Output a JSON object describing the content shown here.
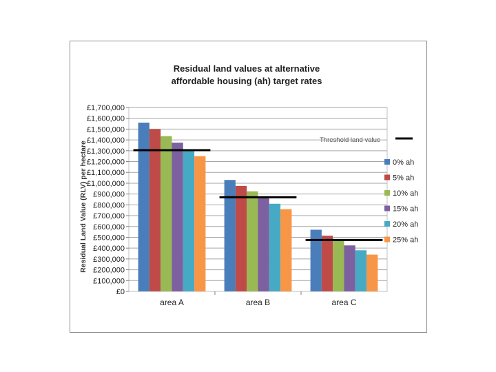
{
  "chart_data": {
    "type": "bar",
    "title_lines": [
      "Residual land values at alternative",
      "affordable housing (ah) target rates"
    ],
    "ylabel": "Residual Land Value (RLV) per hectare",
    "xlabel": "",
    "categories": [
      "area A",
      "area B",
      "area C"
    ],
    "ylim": [
      0,
      1700000
    ],
    "ytick_step": 100000,
    "ytick_labels": [
      "£0",
      "£100,000",
      "£200,000",
      "£300,000",
      "£400,000",
      "£500,000",
      "£600,000",
      "£700,000",
      "£800,000",
      "£900,000",
      "£1,000,000",
      "£1,100,000",
      "£1,200,000",
      "£1,300,000",
      "£1,400,000",
      "£1,500,000",
      "£1,600,000",
      "£1,700,000"
    ],
    "grid": true,
    "legend_position": "right",
    "series": [
      {
        "name": "0% ah",
        "color": "#4a7ebb",
        "values": [
          1560000,
          1030000,
          570000
        ]
      },
      {
        "name": "5% ah",
        "color": "#be4b48",
        "values": [
          1500000,
          975000,
          515000
        ]
      },
      {
        "name": "10% ah",
        "color": "#98b954",
        "values": [
          1435000,
          925000,
          470000
        ]
      },
      {
        "name": "15% ah",
        "color": "#7d60a0",
        "values": [
          1375000,
          865000,
          425000
        ]
      },
      {
        "name": "20% ah",
        "color": "#46aac5",
        "values": [
          1305000,
          810000,
          380000
        ]
      },
      {
        "name": "25% ah",
        "color": "#f79646",
        "values": [
          1250000,
          760000,
          340000
        ]
      }
    ],
    "threshold": {
      "label": "Threshold land value",
      "color": "#000000",
      "values": [
        1305000,
        870000,
        475000
      ]
    }
  }
}
